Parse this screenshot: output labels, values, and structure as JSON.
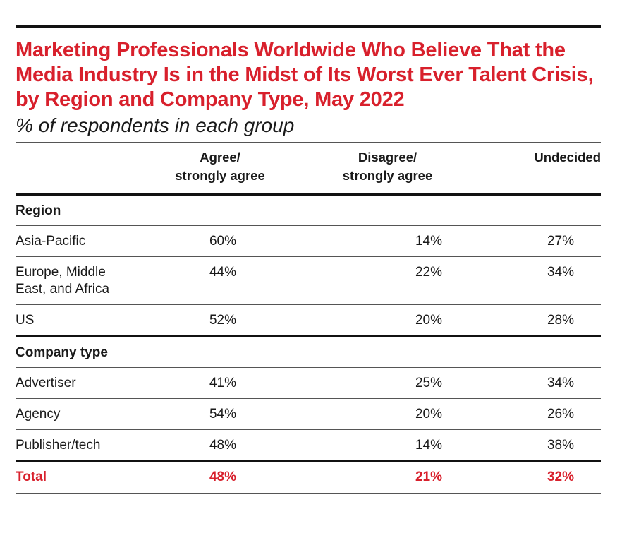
{
  "chart_data": {
    "type": "table",
    "title": "Marketing Professionals Worldwide Who Believe That the Media Industry Is in the Midst of Its Worst Ever Talent Crisis, by Region and Company Type, May 2022",
    "subtitle": "% of respondents in each group",
    "columns": [
      "Agree/\nstrongly agree",
      "Disagree/\nstrongly agree",
      "Undecided"
    ],
    "sections": [
      {
        "name": "Region",
        "rows": [
          {
            "label": "Asia-Pacific",
            "values": [
              "60%",
              "14%",
              "27%"
            ]
          },
          {
            "label": "Europe, Middle\nEast, and Africa",
            "values": [
              "44%",
              "22%",
              "34%"
            ]
          },
          {
            "label": "US",
            "values": [
              "52%",
              "20%",
              "28%"
            ]
          }
        ]
      },
      {
        "name": "Company type",
        "rows": [
          {
            "label": "Advertiser",
            "values": [
              "41%",
              "25%",
              "34%"
            ]
          },
          {
            "label": "Agency",
            "values": [
              "54%",
              "20%",
              "26%"
            ]
          },
          {
            "label": "Publisher/tech",
            "values": [
              "48%",
              "14%",
              "38%"
            ]
          }
        ]
      }
    ],
    "total": {
      "label": "Total",
      "values": [
        "48%",
        "21%",
        "32%"
      ]
    }
  },
  "colors": {
    "title": "#d8202c",
    "total": "#d8202c",
    "rules": "#111111"
  }
}
